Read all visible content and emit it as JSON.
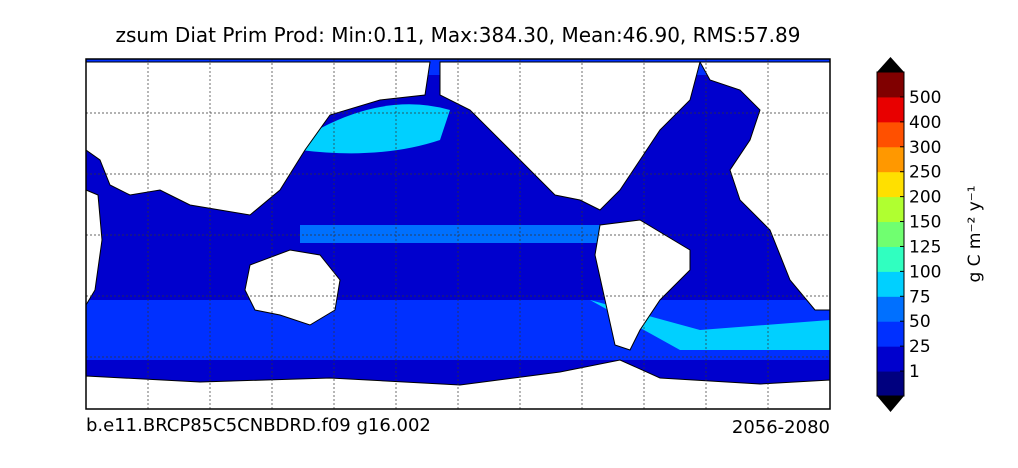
{
  "title": "zsum Diat Prim Prod: Min:0.11, Max:384.30, Mean:46.90, RMS:57.89",
  "footer_left": "b.e11.BRCP85C5CNBDRD.f09 g16.002",
  "footer_right": "2056-2080",
  "colorbar": {
    "label": "g C m⁻² y⁻¹",
    "ticks": [
      1,
      25,
      50,
      75,
      100,
      125,
      150,
      200,
      250,
      300,
      400,
      500
    ],
    "colors": [
      "#00007f",
      "#0000cd",
      "#0030ff",
      "#0070ff",
      "#00d0ff",
      "#30ffc0",
      "#70ff70",
      "#b0ff30",
      "#ffe000",
      "#ff9800",
      "#ff5000",
      "#e80000",
      "#800000"
    ],
    "extend_color": "#000000"
  }
}
